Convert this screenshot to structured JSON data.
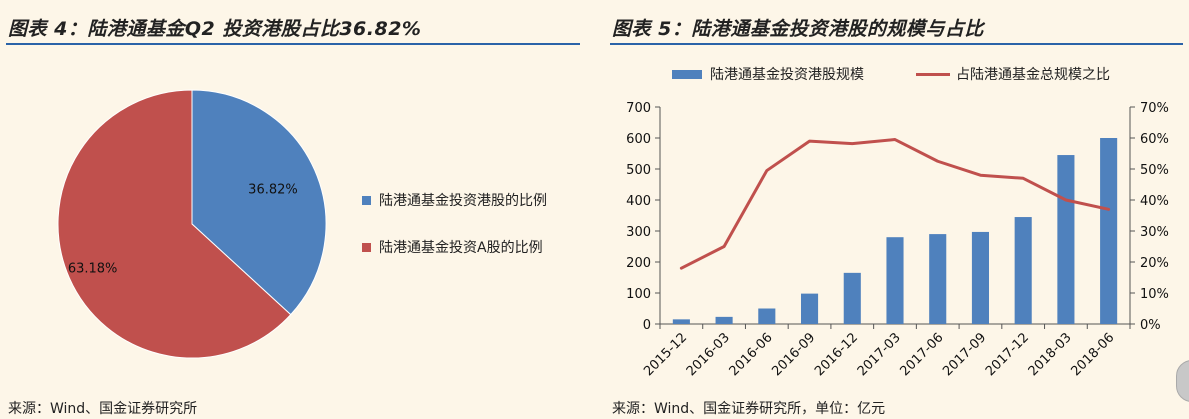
{
  "left": {
    "title": "图表 4：陆港通基金Q2 投资港股占比36.82%",
    "source": "来源：Wind、国金证券研究所",
    "legend": [
      {
        "label": "陆港通基金投资港股的比例",
        "color": "#4f81bd"
      },
      {
        "label": "陆港通基金投资A股的比例",
        "color": "#c0504d"
      }
    ]
  },
  "right": {
    "title": "图表 5：陆港通基金投资港股的规模与占比",
    "source": "来源：Wind、国金证券研究所，单位：亿元",
    "legend": {
      "bar_label": "陆港通基金投资港股规模",
      "line_label": "占陆港通基金总规模之比",
      "bar_color": "#4f81bd",
      "line_color": "#c0504d"
    }
  },
  "chart_data": [
    {
      "type": "pie",
      "labels": [
        "陆港通基金投资港股的比例",
        "陆港通基金投资A股的比例"
      ],
      "values": [
        36.82,
        63.18
      ],
      "value_labels": [
        "36.82%",
        "63.18%"
      ],
      "colors": [
        "#4f81bd",
        "#c0504d"
      ],
      "legend_position": "right"
    },
    {
      "type": "bar",
      "categories": [
        "2015-12",
        "2016-03",
        "2016-06",
        "2016-09",
        "2016-12",
        "2017-03",
        "2017-06",
        "2017-09",
        "2017-12",
        "2018-03",
        "2018-06"
      ],
      "series": [
        {
          "name": "陆港通基金投资港股规模",
          "type": "bar",
          "axis": "left",
          "values": [
            15,
            23,
            50,
            98,
            165,
            280,
            290,
            297,
            345,
            545,
            600
          ]
        },
        {
          "name": "占陆港通基金总规模之比",
          "type": "line",
          "axis": "right",
          "values": [
            18,
            25,
            49.5,
            59,
            58.2,
            59.5,
            52.5,
            48,
            47,
            40,
            37
          ]
        }
      ],
      "ylim_left": [
        0,
        700
      ],
      "yticks_left": [
        "0",
        "100",
        "200",
        "300",
        "400",
        "500",
        "600",
        "700"
      ],
      "ylim_right": [
        0,
        70
      ],
      "yticks_right": [
        "0%",
        "10%",
        "20%",
        "30%",
        "40%",
        "50%",
        "60%",
        "70%"
      ],
      "legend_position": "top",
      "grid": false
    }
  ]
}
